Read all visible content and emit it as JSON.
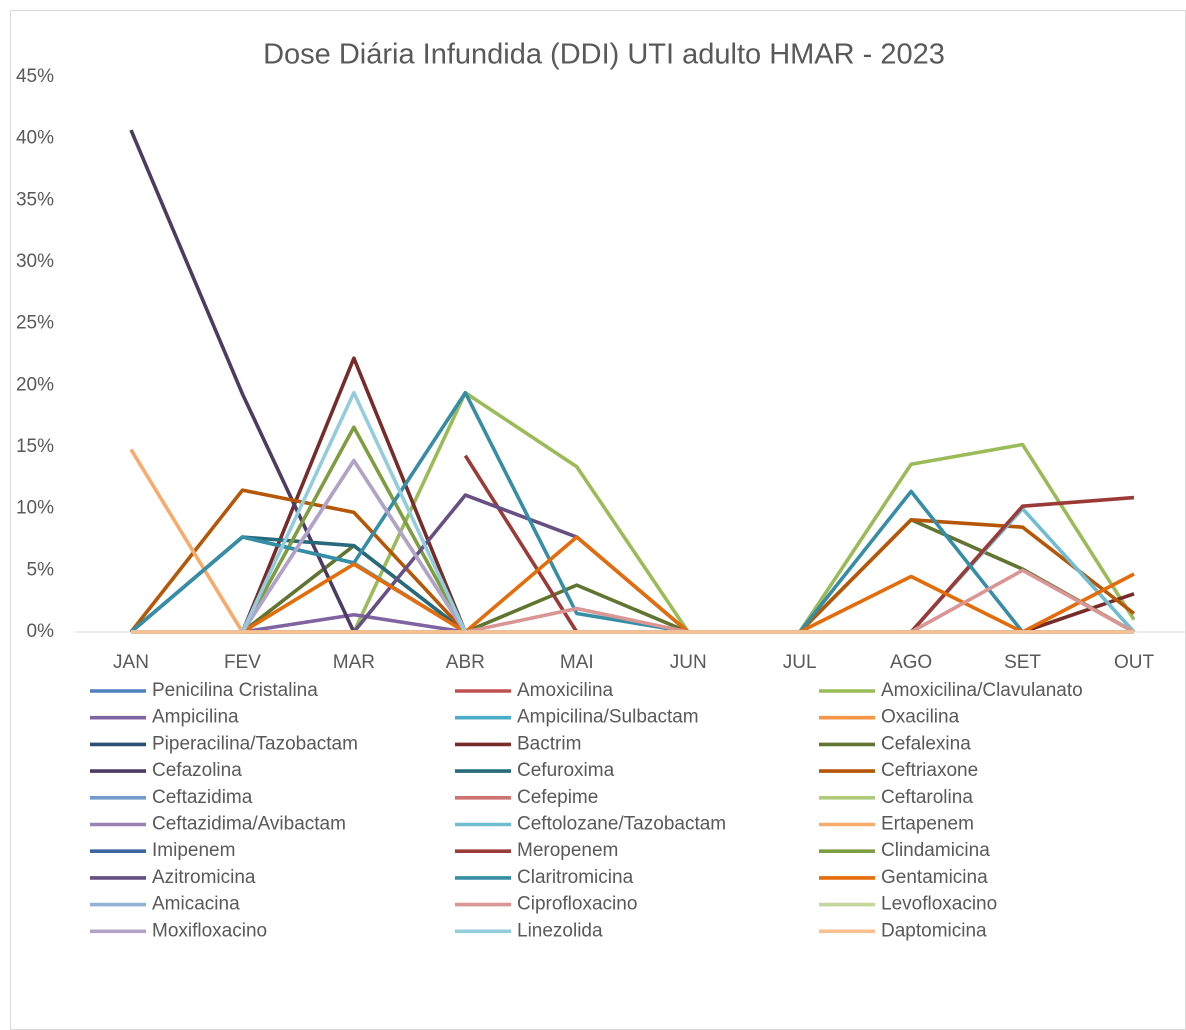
{
  "chart_data": {
    "type": "line",
    "title": "Dose Diária Infundida (DDI) UTI adulto HMAR - 2023",
    "categories": [
      "JAN",
      "FEV",
      "MAR",
      "ABR",
      "MAI",
      "JUN",
      "JUL",
      "AGO",
      "SET",
      "OUT"
    ],
    "ylim": [
      0,
      45
    ],
    "yticks": [
      {
        "value": 0,
        "label": "0%"
      },
      {
        "value": 5,
        "label": "5%"
      },
      {
        "value": 10,
        "label": "10%"
      },
      {
        "value": 15,
        "label": "15%"
      },
      {
        "value": 20,
        "label": "20%"
      },
      {
        "value": 25,
        "label": "25%"
      },
      {
        "value": 30,
        "label": "30%"
      },
      {
        "value": 35,
        "label": "35%"
      },
      {
        "value": 40,
        "label": "40%"
      },
      {
        "value": 45,
        "label": "45%"
      }
    ],
    "grid": false,
    "legend": "bottom",
    "series": [
      {
        "name": "Penicilina Cristalina",
        "color": "#4f81bd",
        "values": [
          0,
          0,
          0,
          0,
          0,
          0,
          0,
          0,
          0,
          0
        ]
      },
      {
        "name": "Amoxicilina",
        "color": "#c0504d",
        "values": [
          0,
          0,
          0,
          0,
          0,
          0,
          0,
          0,
          0,
          0
        ]
      },
      {
        "name": "Amoxicilina/Clavulanato",
        "color": "#9bbb59",
        "values": [
          0,
          0,
          0,
          19.4,
          13.4,
          0,
          0,
          13.6,
          15.2,
          1.0
        ]
      },
      {
        "name": "Ampicilina",
        "color": "#8064a2",
        "values": [
          0,
          0,
          1.4,
          0,
          0,
          0,
          0,
          0,
          0,
          0
        ]
      },
      {
        "name": "Ampicilina/Sulbactam",
        "color": "#4bacc6",
        "values": [
          0,
          7.7,
          5.6,
          0,
          0,
          0,
          0,
          0,
          0,
          0
        ]
      },
      {
        "name": "Oxacilina",
        "color": "#f79646",
        "values": [
          0,
          0,
          0,
          0,
          0,
          0,
          0,
          0,
          0,
          0
        ]
      },
      {
        "name": "Piperacilina/Tazobactam",
        "color": "#2c4d75",
        "values": [
          0,
          0,
          0,
          0,
          0,
          0,
          0,
          0,
          0,
          0
        ]
      },
      {
        "name": "Bactrim",
        "color": "#772c2a",
        "values": [
          0,
          0,
          22.2,
          0,
          0,
          0,
          0,
          0,
          0,
          3.1
        ]
      },
      {
        "name": "Cefalexina",
        "color": "#5f7530",
        "values": [
          0,
          0,
          7.0,
          0,
          3.8,
          0,
          0,
          9.1,
          5.1,
          0
        ]
      },
      {
        "name": "Cefazolina",
        "color": "#4d3b62",
        "values": [
          40.7,
          19.3,
          0,
          0,
          0,
          0,
          0,
          0,
          0,
          0
        ]
      },
      {
        "name": "Cefuroxima",
        "color": "#276a7c",
        "values": [
          0,
          7.7,
          7.0,
          0,
          0,
          0,
          0,
          0,
          0,
          0
        ]
      },
      {
        "name": "Ceftriaxone",
        "color": "#b65708",
        "values": [
          0,
          11.5,
          9.7,
          0,
          0,
          0,
          0,
          9.1,
          8.5,
          1.5
        ]
      },
      {
        "name": "Ceftazidima",
        "color": "#729aca",
        "values": [
          0,
          0,
          0,
          0,
          0,
          0,
          0,
          0,
          0,
          0
        ]
      },
      {
        "name": "Cefepime",
        "color": "#cd7371",
        "values": [
          0,
          0,
          0,
          0,
          0,
          0,
          0,
          0,
          0,
          0
        ]
      },
      {
        "name": "Ceftarolina",
        "color": "#afc97a",
        "values": [
          0,
          0,
          0,
          0,
          0,
          0,
          0,
          0,
          0,
          0
        ]
      },
      {
        "name": "Ceftazidima/Avibactam",
        "color": "#9983b5",
        "values": [
          0,
          0,
          0,
          0,
          0,
          0,
          0,
          0,
          0,
          0
        ]
      },
      {
        "name": "Ceftolozane/Tazobactam",
        "color": "#6fbdd1",
        "values": [
          0,
          0,
          0,
          0,
          0,
          0,
          0,
          0,
          10.0,
          0
        ]
      },
      {
        "name": "Ertapenem",
        "color": "#f9ab6b",
        "values": [
          14.8,
          0,
          0,
          0,
          0,
          0,
          0,
          0,
          0,
          0
        ]
      },
      {
        "name": "Imipenem",
        "color": "#3a679c",
        "values": [
          0,
          0,
          0,
          0,
          0,
          0,
          0,
          0,
          0,
          0
        ]
      },
      {
        "name": "Meropenem",
        "color": "#9a3b38",
        "values": [
          null,
          null,
          null,
          14.3,
          0,
          0,
          0,
          0,
          10.2,
          10.9
        ]
      },
      {
        "name": "Clindamicina",
        "color": "#7e9c40",
        "values": [
          0,
          0,
          16.6,
          0,
          0,
          0,
          0,
          0,
          0,
          0
        ]
      },
      {
        "name": "Azitromicina",
        "color": "#664f82",
        "values": [
          0,
          0,
          0,
          11.1,
          7.7,
          0,
          0,
          0,
          0,
          0
        ]
      },
      {
        "name": "Claritromicina",
        "color": "#358ea6",
        "values": [
          0,
          7.7,
          5.6,
          19.4,
          1.5,
          0,
          0,
          11.4,
          0,
          0
        ]
      },
      {
        "name": "Gentamicina",
        "color": "#e46c0a",
        "values": [
          0,
          0,
          5.5,
          0,
          7.7,
          0,
          0,
          4.5,
          0,
          4.7
        ]
      },
      {
        "name": "Amicacina",
        "color": "#95b3d7",
        "values": [
          0,
          0,
          13.9,
          0,
          0,
          0,
          0,
          0,
          0,
          0
        ]
      },
      {
        "name": "Ciprofloxacino",
        "color": "#d99694",
        "values": [
          0,
          0,
          0,
          0,
          1.9,
          0,
          0,
          0,
          5.0,
          0
        ]
      },
      {
        "name": "Levofloxacino",
        "color": "#c3d69b",
        "values": [
          0,
          0,
          0,
          0,
          0,
          0,
          0,
          0,
          0,
          0
        ]
      },
      {
        "name": "Moxifloxacino",
        "color": "#b2a2c7",
        "values": [
          0,
          0,
          13.9,
          0,
          0,
          0,
          0,
          0,
          0,
          0
        ]
      },
      {
        "name": "Linezolida",
        "color": "#93cddd",
        "values": [
          0,
          0,
          19.4,
          0,
          0,
          0,
          0,
          0,
          0,
          0
        ]
      },
      {
        "name": "Daptomicina",
        "color": "#fac090",
        "values": [
          0,
          0,
          0,
          0,
          0,
          0,
          0,
          0,
          0,
          0
        ]
      }
    ]
  }
}
